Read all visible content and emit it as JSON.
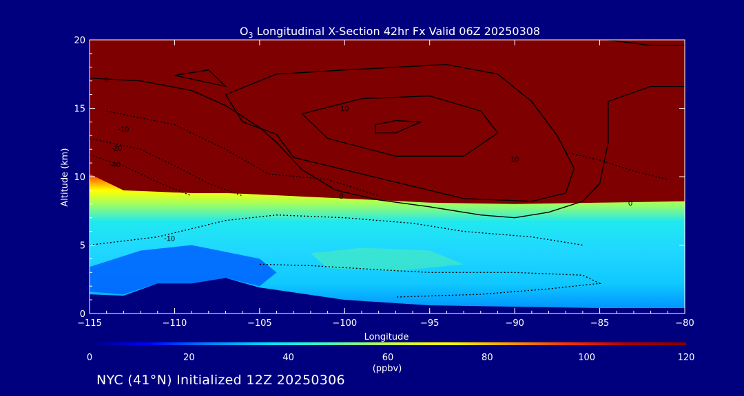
{
  "title": {
    "species": "O",
    "subscript": "3",
    "rest": " Longitudinal X-Section 42hr  Fx Valid 06Z 20250308"
  },
  "footer": "NYC (41°N) Initialized 12Z 20250306",
  "chart_data": {
    "type": "heatmap",
    "xlabel": "Longitude",
    "ylabel": "Altitude (km)",
    "xlim": [
      -115,
      -80
    ],
    "ylim": [
      0,
      20
    ],
    "xticks": [
      "-115",
      "-110",
      "-105",
      "-100",
      "-95",
      "-90",
      "-85",
      "-80"
    ],
    "yticks": [
      "0",
      "5",
      "10",
      "15",
      "20"
    ],
    "colorbar": {
      "ticks": [
        "0",
        "20",
        "40",
        "60",
        "80",
        "100",
        "120"
      ],
      "unit": "(ppbv)",
      "range": [
        0,
        120
      ],
      "colors": [
        "#00007f",
        "#0000ff",
        "#0080ff",
        "#00e0ff",
        "#40ffc0",
        "#c0ff40",
        "#ffff00",
        "#ffa000",
        "#ff3000",
        "#b00000",
        "#7f0000"
      ]
    },
    "contour_labels": [
      {
        "text": "0",
        "lon": -114,
        "alt": 17.1
      },
      {
        "text": "-10",
        "lon": -113,
        "alt": 13.5
      },
      {
        "text": "-20",
        "lon": -113.4,
        "alt": 12.1
      },
      {
        "text": "-40",
        "lon": -113.5,
        "alt": 10.9
      },
      {
        "text": "10",
        "lon": -100,
        "alt": 15
      },
      {
        "text": "10",
        "lon": -90,
        "alt": 11.3
      },
      {
        "text": "0",
        "lon": -100.2,
        "alt": 8.6
      },
      {
        "text": "-10",
        "lon": -110.3,
        "alt": 5.5
      },
      {
        "text": "0",
        "lon": -83.2,
        "alt": 8.1
      }
    ],
    "ozone_profile": [
      {
        "lon": -115,
        "tropopause_km": 10.2,
        "surface_km": 1.4
      },
      {
        "lon": -113,
        "tropopause_km": 9.0,
        "surface_km": 1.3
      },
      {
        "lon": -111,
        "tropopause_km": 8.9,
        "surface_km": 2.2
      },
      {
        "lon": -109,
        "tropopause_km": 8.8,
        "surface_km": 2.2
      },
      {
        "lon": -107,
        "tropopause_km": 8.8,
        "surface_km": 2.6
      },
      {
        "lon": -105,
        "tropopause_km": 8.7,
        "surface_km": 1.9
      },
      {
        "lon": -100,
        "tropopause_km": 8.4,
        "surface_km": 1.0
      },
      {
        "lon": -95,
        "tropopause_km": 8.1,
        "surface_km": 0.6
      },
      {
        "lon": -90,
        "tropopause_km": 8.0,
        "surface_km": 0.5
      },
      {
        "lon": -85,
        "tropopause_km": 8.1,
        "surface_km": 0.4
      },
      {
        "lon": -80,
        "tropopause_km": 8.2,
        "surface_km": 0.4
      }
    ]
  }
}
